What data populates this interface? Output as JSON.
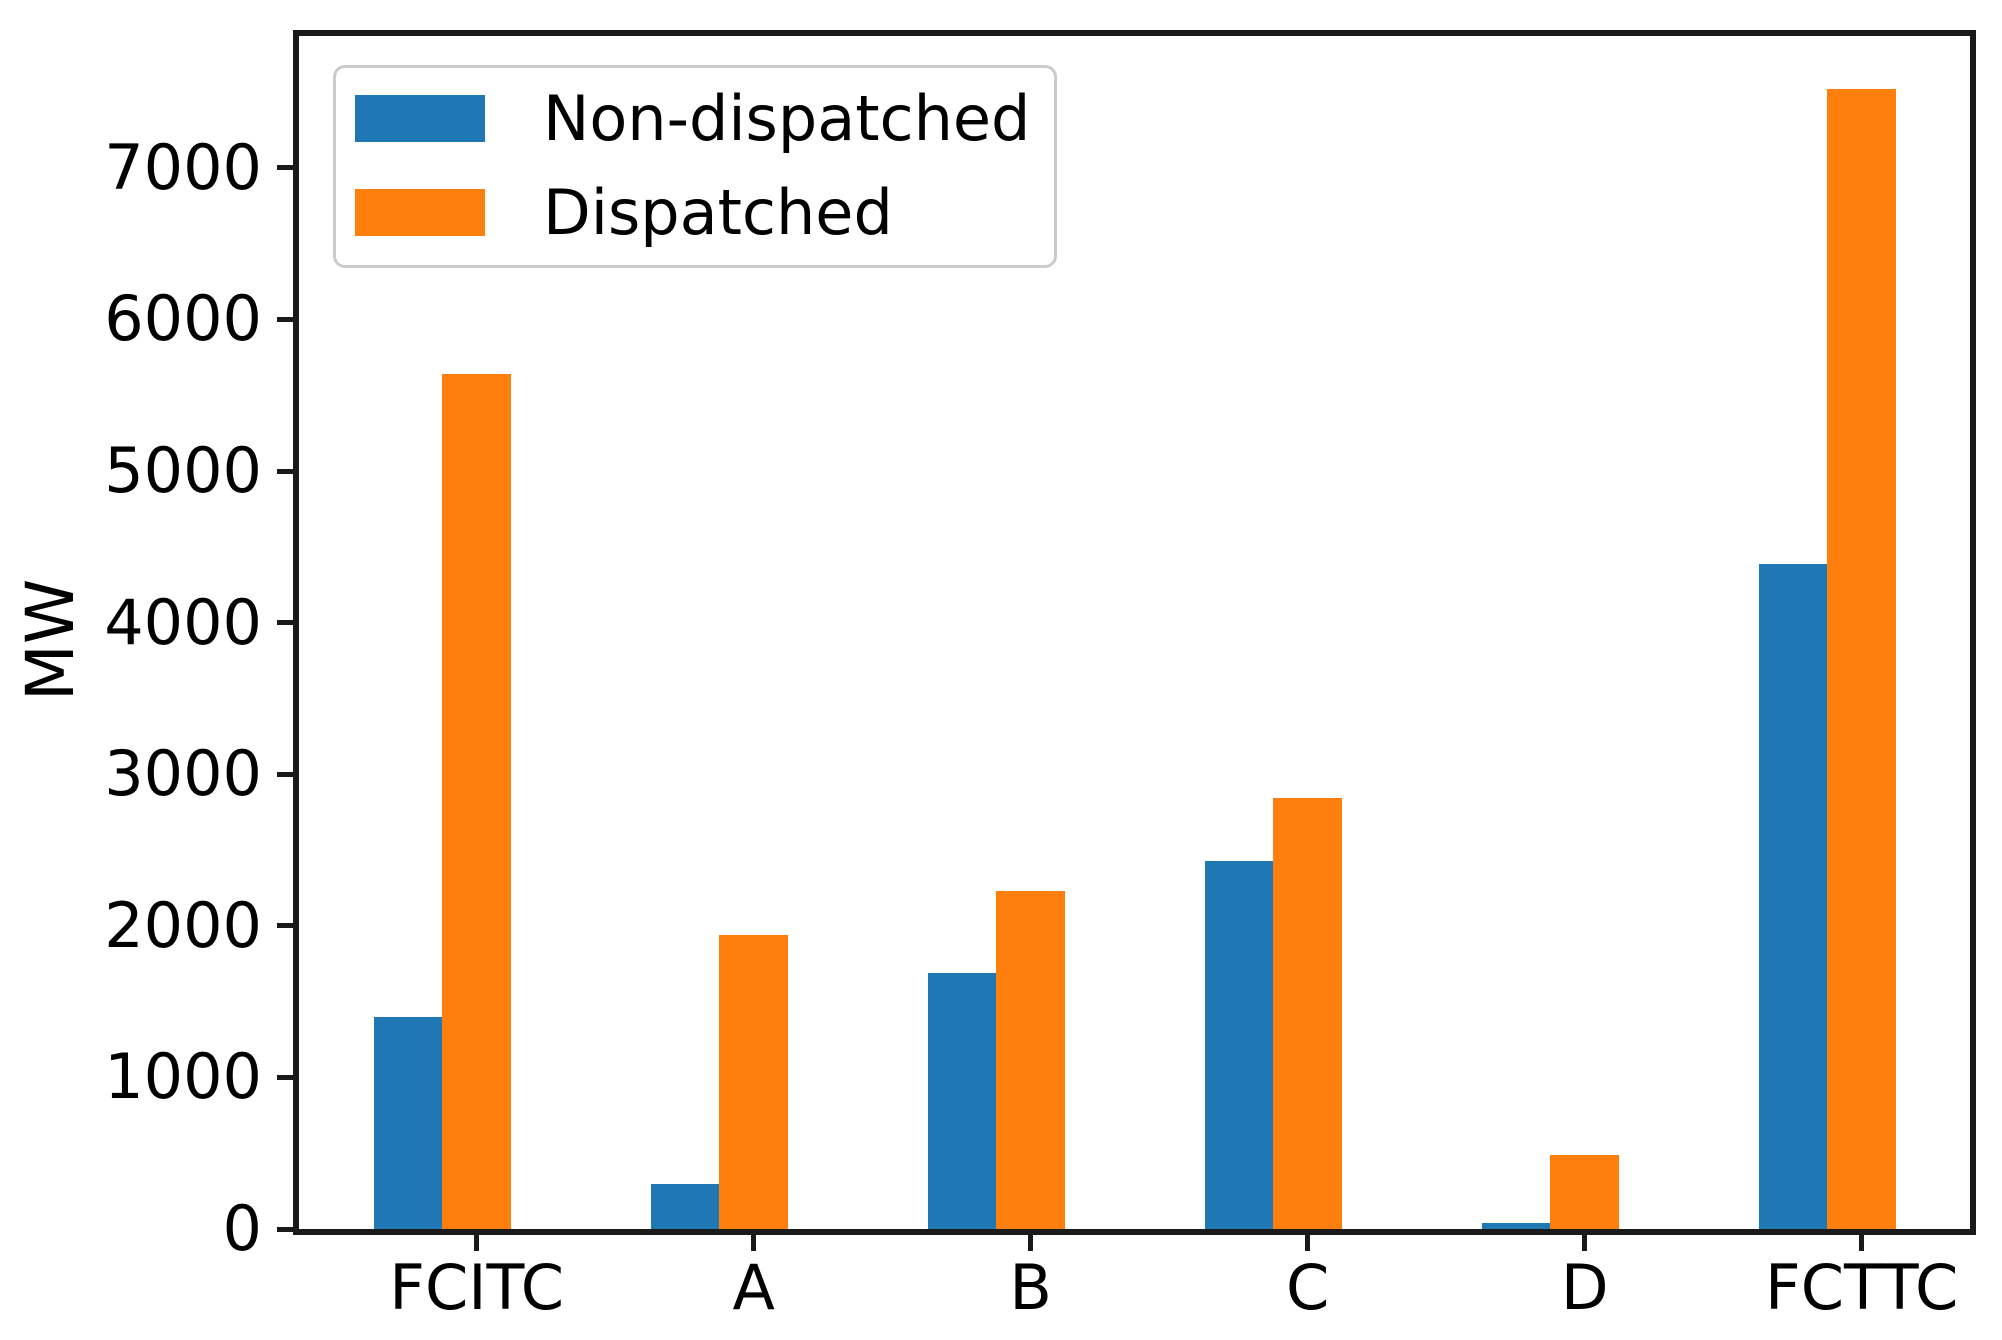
{
  "chart_data": {
    "type": "bar",
    "title": "",
    "xlabel": "",
    "ylabel": "MW",
    "categories": [
      "FCITC",
      "A",
      "B",
      "C",
      "D",
      "FCTTC"
    ],
    "series": [
      {
        "name": "Non-dispatched",
        "color": "#1f77b4",
        "values": [
          1400,
          300,
          1690,
          2430,
          40,
          4390
        ]
      },
      {
        "name": "Dispatched",
        "color": "#ff7f0e",
        "values": [
          5640,
          1940,
          2230,
          2840,
          490,
          7520
        ]
      }
    ],
    "yticks": [
      0,
      1000,
      2000,
      3000,
      4000,
      5000,
      6000,
      7000
    ],
    "ytick_labels": [
      "0",
      "1000",
      "2000",
      "3000",
      "4000",
      "5000",
      "6000",
      "7000"
    ],
    "ylim": [
      0,
      7870
    ],
    "grid": false,
    "legend_position": "upper left",
    "frame_color": "#1a1a1a"
  },
  "legend": {
    "items": [
      {
        "label": "Non-dispatched",
        "color": "#1f77b4"
      },
      {
        "label": "Dispatched",
        "color": "#ff7f0e"
      }
    ]
  }
}
